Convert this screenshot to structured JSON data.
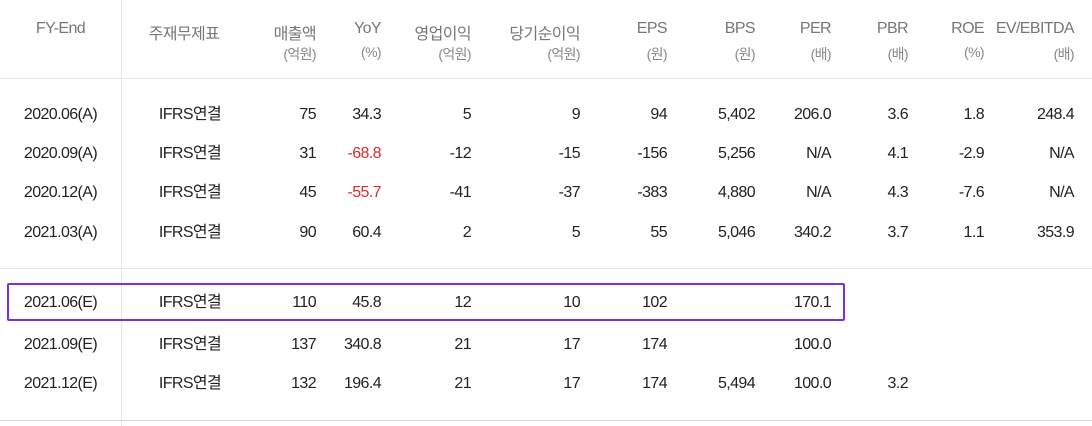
{
  "table": {
    "headers": [
      {
        "line1": "FY-End",
        "line2": ""
      },
      {
        "line1": "주재무제표",
        "line2": ""
      },
      {
        "line1": "매출액",
        "line2": "(억원)"
      },
      {
        "line1": "YoY",
        "line2": "(%)"
      },
      {
        "line1": "영업이익",
        "line2": "(억원)"
      },
      {
        "line1": "당기순이익",
        "line2": "(억원)"
      },
      {
        "line1": "EPS",
        "line2": "(원)"
      },
      {
        "line1": "BPS",
        "line2": "(원)"
      },
      {
        "line1": "PER",
        "line2": "(배)"
      },
      {
        "line1": "PBR",
        "line2": "(배)"
      },
      {
        "line1": "ROE",
        "line2": "(%)"
      },
      {
        "line1": "EV/EBITDA",
        "line2": "(배)"
      }
    ],
    "rows": [
      {
        "fy": "2020.06(A)",
        "type": "IFRS연결",
        "sales": "75",
        "yoy": "34.3",
        "op": "5",
        "net": "9",
        "eps": "94",
        "bps": "5,402",
        "per": "206.0",
        "pbr": "3.6",
        "roe": "1.8",
        "ev": "248.4"
      },
      {
        "fy": "2020.09(A)",
        "type": "IFRS연결",
        "sales": "31",
        "yoy": "-68.8",
        "op": "-12",
        "net": "-15",
        "eps": "-156",
        "bps": "5,256",
        "per": "N/A",
        "pbr": "4.1",
        "roe": "-2.9",
        "ev": "N/A"
      },
      {
        "fy": "2020.12(A)",
        "type": "IFRS연결",
        "sales": "45",
        "yoy": "-55.7",
        "op": "-41",
        "net": "-37",
        "eps": "-383",
        "bps": "4,880",
        "per": "N/A",
        "pbr": "4.3",
        "roe": "-7.6",
        "ev": "N/A"
      },
      {
        "fy": "2021.03(A)",
        "type": "IFRS연결",
        "sales": "90",
        "yoy": "60.4",
        "op": "2",
        "net": "5",
        "eps": "55",
        "bps": "5,046",
        "per": "340.2",
        "pbr": "3.7",
        "roe": "1.1",
        "ev": "353.9"
      },
      {
        "fy": "2021.06(E)",
        "type": "IFRS연결",
        "sales": "110",
        "yoy": "45.8",
        "op": "12",
        "net": "10",
        "eps": "102",
        "bps": "",
        "per": "170.1",
        "pbr": "",
        "roe": "",
        "ev": ""
      },
      {
        "fy": "2021.09(E)",
        "type": "IFRS연결",
        "sales": "137",
        "yoy": "340.8",
        "op": "21",
        "net": "17",
        "eps": "174",
        "bps": "",
        "per": "100.0",
        "pbr": "",
        "roe": "",
        "ev": ""
      },
      {
        "fy": "2021.12(E)",
        "type": "IFRS연결",
        "sales": "132",
        "yoy": "196.4",
        "op": "21",
        "net": "17",
        "eps": "174",
        "bps": "5,494",
        "per": "100.0",
        "pbr": "3.2",
        "roe": "",
        "ev": ""
      }
    ]
  },
  "colors": {
    "negative_yoy": "#e02a2a",
    "highlight_border": "#7a2fe0"
  }
}
